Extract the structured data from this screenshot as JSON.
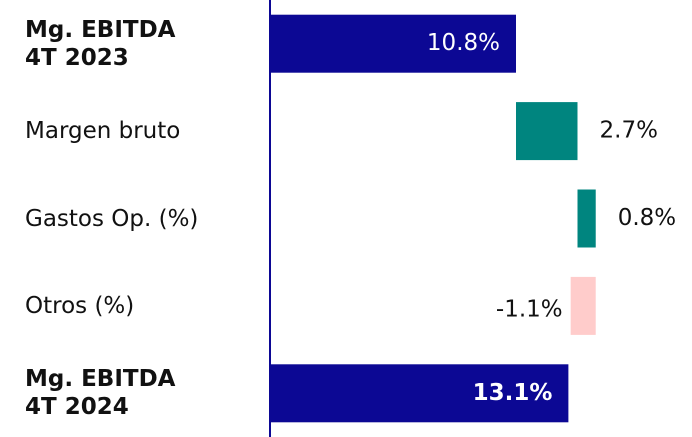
{
  "chart_data": {
    "type": "waterfall",
    "categories": [
      "Mg. EBITDA\n4T 2023",
      "Margen bruto",
      "Gastos Op. (%)",
      "Otros (%)",
      "Mg. EBITDA\n4T 2024"
    ],
    "measure": [
      "total",
      "relative",
      "relative",
      "relative",
      "total"
    ],
    "values": [
      10.8,
      2.7,
      0.8,
      -1.1,
      13.1
    ],
    "value_labels": [
      "10.8%",
      "2.7%",
      "0.8%",
      "-1.1%",
      "13.1%"
    ],
    "colors": {
      "total": "#0c0894",
      "increase": "#00857f",
      "decrease": "#ffcccb"
    },
    "xlim": [
      0,
      18
    ]
  }
}
